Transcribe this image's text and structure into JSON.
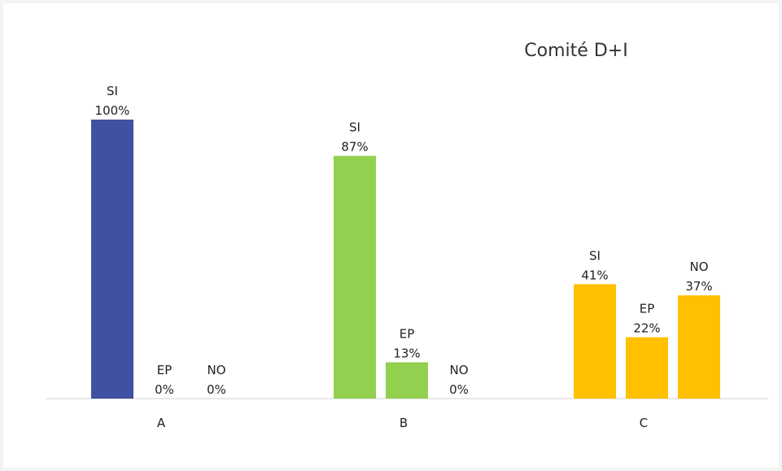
{
  "chart_data": {
    "type": "bar",
    "title": "Comité D+I",
    "xlabel": "",
    "ylabel": "",
    "ylim": [
      0,
      100
    ],
    "grid": false,
    "legend": "none",
    "categories": [
      "A",
      "B",
      "C"
    ],
    "series_labels": [
      "SI",
      "EP",
      "NO"
    ],
    "groups": [
      {
        "category": "A",
        "color": "#3F51A0",
        "bars": [
          {
            "label": "SI",
            "value": 100,
            "text": "100%"
          },
          {
            "label": "EP",
            "value": 0,
            "text": "0%"
          },
          {
            "label": "NO",
            "value": 0,
            "text": "0%"
          }
        ]
      },
      {
        "category": "B",
        "color": "#92D050",
        "bars": [
          {
            "label": "SI",
            "value": 87,
            "text": "87%"
          },
          {
            "label": "EP",
            "value": 13,
            "text": "13%"
          },
          {
            "label": "NO",
            "value": 0,
            "text": "0%"
          }
        ]
      },
      {
        "category": "C",
        "color": "#FFC000",
        "bars": [
          {
            "label": "SI",
            "value": 41,
            "text": "41%"
          },
          {
            "label": "EP",
            "value": 22,
            "text": "22%"
          },
          {
            "label": "NO",
            "value": 37,
            "text": "37%"
          }
        ]
      }
    ]
  }
}
